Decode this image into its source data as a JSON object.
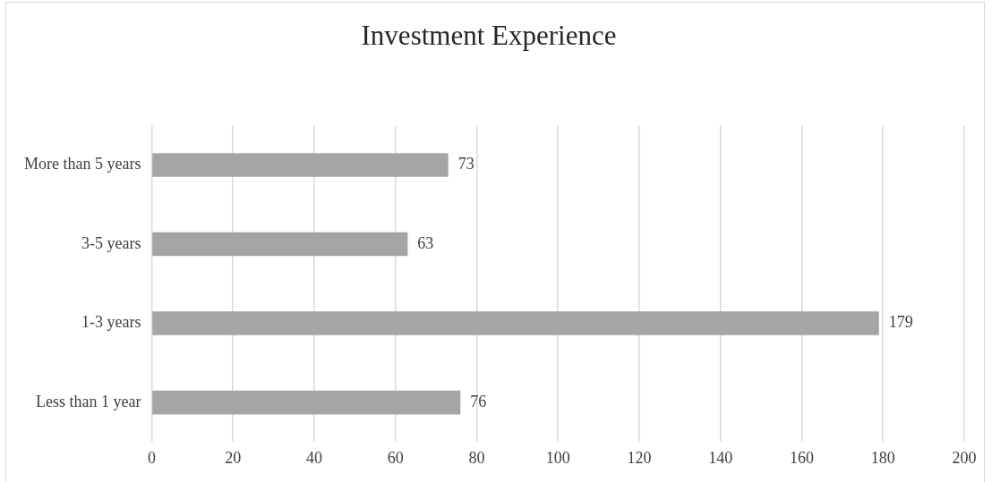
{
  "chart_data": {
    "type": "bar",
    "title": "Investment Experience",
    "orientation": "horizontal",
    "categories": [
      "More than 5 years",
      "3-5 years",
      "1-3 years",
      "Less than 1 year"
    ],
    "values": [
      73,
      63,
      179,
      76
    ],
    "color": "#a5a5a5",
    "xlim": [
      0,
      200
    ],
    "xticks": [
      0,
      20,
      40,
      60,
      80,
      100,
      120,
      140,
      160,
      180,
      200
    ],
    "grid": "x",
    "data_labels": true
  }
}
